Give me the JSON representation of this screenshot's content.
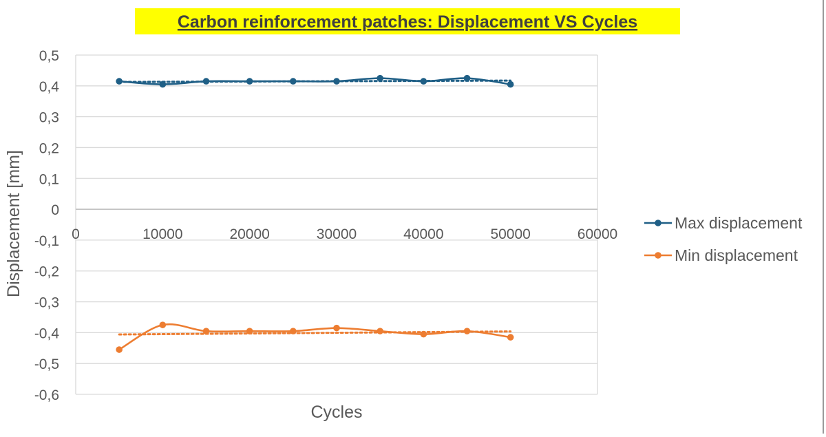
{
  "chart_data": {
    "type": "line",
    "title": "Carbon reinforcement patches: Displacement VS Cycles",
    "xlabel": "Cycles",
    "ylabel": "Displacement [mm]",
    "xlim": [
      0,
      60000
    ],
    "ylim": [
      -0.6,
      0.5
    ],
    "x_ticks": [
      0,
      10000,
      20000,
      30000,
      40000,
      50000,
      60000
    ],
    "x_tick_labels": [
      "0",
      "10000",
      "20000",
      "30000",
      "40000",
      "50000",
      "60000"
    ],
    "y_ticks": [
      0.5,
      0.4,
      0.3,
      0.2,
      0.1,
      0,
      -0.1,
      -0.2,
      -0.3,
      -0.4,
      -0.5,
      -0.6
    ],
    "y_tick_labels": [
      "0,5",
      "0,4",
      "0,3",
      "0,2",
      "0,1",
      "0",
      "-0,1",
      "-0,2",
      "-0,3",
      "-0,4",
      "-0,5",
      "-0,6"
    ],
    "grid": "horizontal",
    "legend_position": "right",
    "x": [
      5000,
      10000,
      15000,
      20000,
      25000,
      30000,
      35000,
      40000,
      45000,
      50000
    ],
    "series": [
      {
        "name": "Max displacement",
        "color": "#1f5f86",
        "values": [
          0.415,
          0.405,
          0.415,
          0.415,
          0.415,
          0.415,
          0.425,
          0.415,
          0.425,
          0.405
        ],
        "trendline": "linear dotted"
      },
      {
        "name": "Min displacement",
        "color": "#ed7d31",
        "values": [
          -0.455,
          -0.375,
          -0.395,
          -0.395,
          -0.395,
          -0.385,
          -0.395,
          -0.405,
          -0.395,
          -0.415
        ],
        "trendline": "linear dotted"
      }
    ]
  },
  "colors": {
    "title_highlight": "#ffff00",
    "title_text": "#404040",
    "axis_text": "#595959",
    "gridline": "#d9d9d9"
  }
}
